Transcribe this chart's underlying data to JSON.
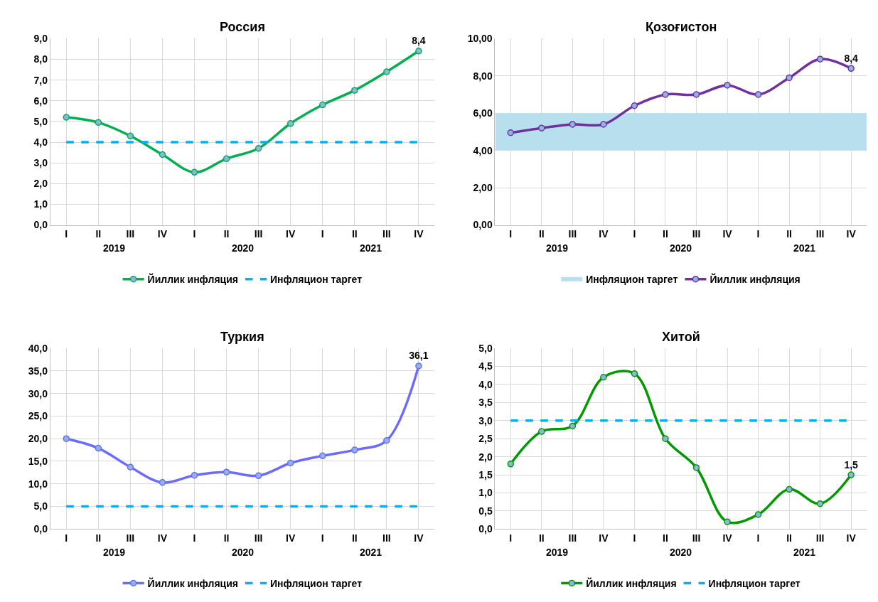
{
  "chart_data": [
    {
      "type": "line",
      "title": "Россия",
      "categories": [
        "I",
        "II",
        "III",
        "IV",
        "I",
        "II",
        "III",
        "IV",
        "I",
        "II",
        "III",
        "IV"
      ],
      "annotations": [
        "2019",
        "2020",
        "2021"
      ],
      "ylim": [
        0,
        9
      ],
      "yticks": [
        {
          "value": 0,
          "label": "0,0"
        },
        {
          "value": 1,
          "label": "1,0"
        },
        {
          "value": 2,
          "label": "2,0"
        },
        {
          "value": 3,
          "label": "3,0"
        },
        {
          "value": 4,
          "label": "4,0"
        },
        {
          "value": 5,
          "label": "5,0"
        },
        {
          "value": 6,
          "label": "6,0"
        },
        {
          "value": 7,
          "label": "7,0"
        },
        {
          "value": 8,
          "label": "8,0"
        },
        {
          "value": 9,
          "label": "9,0"
        }
      ],
      "grid": true,
      "legend": "bottom",
      "marker": "circle",
      "line_style": "solid",
      "series": [
        {
          "name": "Йиллик инфляция",
          "color": "#00b050",
          "values": [
            5.2,
            4.95,
            4.3,
            3.4,
            2.55,
            3.2,
            3.7,
            4.9,
            5.8,
            6.5,
            7.4,
            8.4
          ],
          "value_labels": [
            null,
            null,
            null,
            null,
            null,
            null,
            null,
            null,
            null,
            null,
            null,
            "8,4"
          ]
        }
      ],
      "ref_lines": [
        {
          "axis": "y",
          "value": 4,
          "label": "Инфляцион таргет",
          "color": "#00b0f0",
          "line_style": "dashed"
        }
      ]
    },
    {
      "type": "line",
      "title": "Қозоғистон",
      "categories": [
        "I",
        "II",
        "III",
        "IV",
        "I",
        "II",
        "III",
        "IV",
        "I",
        "II",
        "III",
        "IV"
      ],
      "annotations": [
        "2019",
        "2020",
        "2021"
      ],
      "ylim": [
        0,
        10
      ],
      "yticks": [
        {
          "value": 0,
          "label": "0,00"
        },
        {
          "value": 2,
          "label": "2,00"
        },
        {
          "value": 4,
          "label": "4,00"
        },
        {
          "value": 6,
          "label": "6,00"
        },
        {
          "value": 8,
          "label": "8,00"
        },
        {
          "value": 10,
          "label": "10,00"
        }
      ],
      "grid": true,
      "legend": "bottom",
      "marker": "circle",
      "line_style": "solid",
      "bands": [
        {
          "axis": "y",
          "from": 4,
          "to": 6,
          "label": "Инфляцион таргет",
          "color": "#b8dfee"
        }
      ],
      "series": [
        {
          "name": "Йиллик инфляция",
          "color": "#7030a0",
          "values": [
            4.95,
            5.2,
            5.4,
            5.4,
            6.4,
            7.0,
            7.0,
            7.5,
            7.0,
            7.9,
            8.9,
            8.4
          ],
          "value_labels": [
            null,
            null,
            null,
            null,
            null,
            null,
            null,
            null,
            null,
            null,
            null,
            "8,4"
          ]
        }
      ]
    },
    {
      "type": "line",
      "title": "Туркия",
      "categories": [
        "I",
        "II",
        "III",
        "IV",
        "I",
        "II",
        "III",
        "IV",
        "I",
        "II",
        "III",
        "IV"
      ],
      "annotations": [
        "2019",
        "2020",
        "2021"
      ],
      "ylim": [
        0,
        40
      ],
      "yticks": [
        {
          "value": 0,
          "label": "0,0"
        },
        {
          "value": 5,
          "label": "5,0"
        },
        {
          "value": 10,
          "label": "10,0"
        },
        {
          "value": 15,
          "label": "15,0"
        },
        {
          "value": 20,
          "label": "20,0"
        },
        {
          "value": 25,
          "label": "25,0"
        },
        {
          "value": 30,
          "label": "30,0"
        },
        {
          "value": 35,
          "label": "35,0"
        },
        {
          "value": 40,
          "label": "40,0"
        }
      ],
      "grid": true,
      "legend": "bottom",
      "marker": "circle",
      "line_style": "solid",
      "series": [
        {
          "name": "Йиллик инфляция",
          "color": "#6b6bff",
          "values": [
            20.0,
            17.9,
            13.7,
            10.3,
            11.9,
            12.6,
            11.8,
            14.6,
            16.2,
            17.5,
            19.6,
            36.1
          ],
          "value_labels": [
            null,
            null,
            null,
            null,
            null,
            null,
            null,
            null,
            null,
            null,
            null,
            "36,1"
          ]
        }
      ],
      "ref_lines": [
        {
          "axis": "y",
          "value": 5,
          "label": "Инфляцион таргет",
          "color": "#00b0f0",
          "line_style": "dashed"
        }
      ]
    },
    {
      "type": "line",
      "title": "Хитой",
      "categories": [
        "I",
        "II",
        "III",
        "IV",
        "I",
        "II",
        "III",
        "IV",
        "I",
        "II",
        "III",
        "IV"
      ],
      "annotations": [
        "2019",
        "2020",
        "2021"
      ],
      "ylim": [
        0,
        5
      ],
      "yticks": [
        {
          "value": 0,
          "label": "0,0"
        },
        {
          "value": 0.5,
          "label": "0,5"
        },
        {
          "value": 1,
          "label": "1,0"
        },
        {
          "value": 1.5,
          "label": "1,5"
        },
        {
          "value": 2,
          "label": "2,0"
        },
        {
          "value": 2.5,
          "label": "2,5"
        },
        {
          "value": 3,
          "label": "3,0"
        },
        {
          "value": 3.5,
          "label": "3,5"
        },
        {
          "value": 4,
          "label": "4,0"
        },
        {
          "value": 4.5,
          "label": "4,5"
        },
        {
          "value": 5,
          "label": "5,0"
        }
      ],
      "grid": true,
      "legend": "bottom",
      "marker": "circle",
      "line_style": "solid",
      "series": [
        {
          "name": "Йиллик инфляция",
          "color": "#009900",
          "values": [
            1.8,
            2.7,
            2.85,
            4.2,
            4.3,
            2.5,
            1.7,
            0.2,
            0.4,
            1.1,
            0.7,
            1.5
          ],
          "value_labels": [
            null,
            null,
            null,
            null,
            null,
            null,
            null,
            null,
            null,
            null,
            null,
            "1,5"
          ]
        }
      ],
      "ref_lines": [
        {
          "axis": "y",
          "value": 3,
          "label": "Инфляцион таргет",
          "color": "#00b0f0",
          "line_style": "dashed"
        }
      ]
    }
  ]
}
